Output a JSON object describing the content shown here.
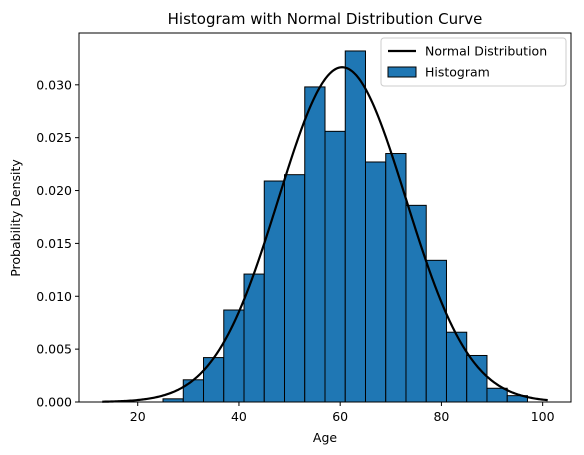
{
  "chart_data": {
    "type": "bar",
    "title": "Histogram with Normal Distribution Curve",
    "xlabel": "Age",
    "ylabel": "Probability Density",
    "xlim": [
      8.4,
      105.6
    ],
    "ylim": [
      0.0,
      0.0349
    ],
    "xticks": [
      20,
      40,
      60,
      80,
      100
    ],
    "yticks": [
      0.0,
      0.005,
      0.01,
      0.015,
      0.02,
      0.025,
      0.03
    ],
    "ytick_labels": [
      "0.000",
      "0.005",
      "0.010",
      "0.015",
      "0.020",
      "0.025",
      "0.030"
    ],
    "grid": false,
    "legend_position": "upper-right",
    "series": [
      {
        "name": "Histogram",
        "kind": "histogram",
        "color": "#1f77b4",
        "edgecolor": "#000000",
        "bin_edges": [
          25,
          29,
          33,
          37,
          41,
          45,
          49,
          53,
          57,
          61,
          65,
          69,
          73,
          77,
          81,
          85,
          89,
          93,
          97
        ],
        "values": [
          0.0003,
          0.0021,
          0.0042,
          0.0087,
          0.0121,
          0.0209,
          0.0215,
          0.0298,
          0.0256,
          0.0332,
          0.0227,
          0.0235,
          0.0186,
          0.0134,
          0.0066,
          0.0044,
          0.0013,
          0.0006
        ]
      },
      {
        "name": "Normal Distribution",
        "kind": "line",
        "color": "#000000",
        "mean": 60.4,
        "std": 12.6,
        "x_range": [
          13,
          101
        ]
      }
    ]
  }
}
